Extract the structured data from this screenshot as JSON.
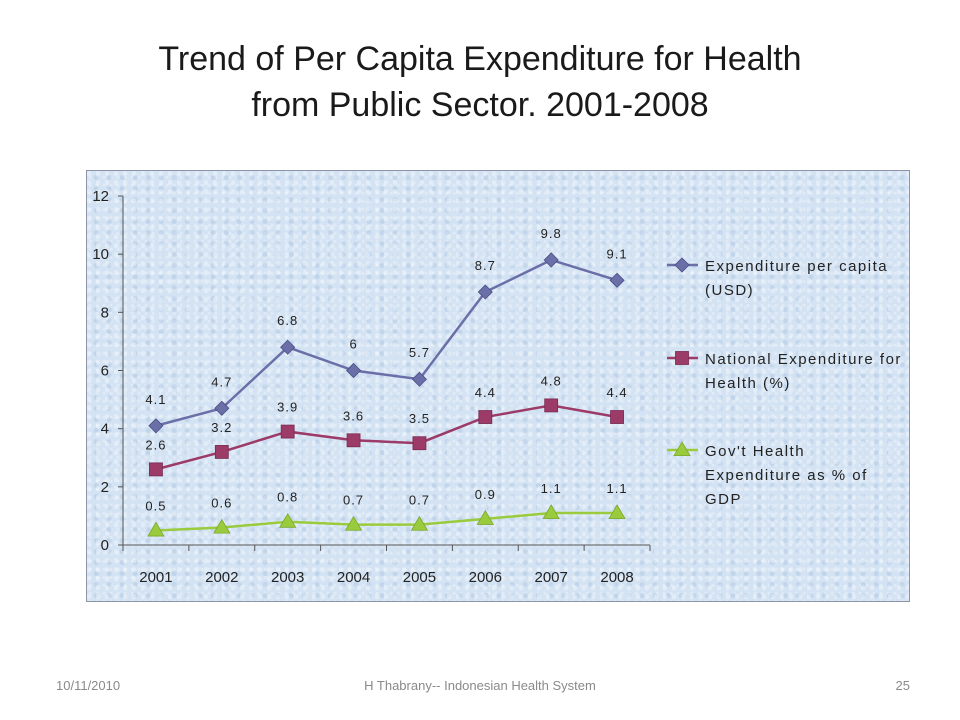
{
  "slide": {
    "title_line1": "Trend of  Per Capita Expenditure for Health",
    "title_line2": "from Public Sector. 2001-2008"
  },
  "footer": {
    "date": "10/11/2010",
    "center": "H Thabrany-- Indonesian Health System",
    "page": "25"
  },
  "chart_data": {
    "type": "line",
    "title": "Trend of  Per Capita Expenditure for Health from Public Sector. 2001-2008",
    "xlabel": "",
    "ylabel": "",
    "categories": [
      "2001",
      "2002",
      "2003",
      "2004",
      "2005",
      "2006",
      "2007",
      "2008"
    ],
    "ylim": [
      0,
      12
    ],
    "yticks": [
      "0",
      "2",
      "4",
      "6",
      "8",
      "10",
      "12"
    ],
    "grid": false,
    "legend_position": "right",
    "series": [
      {
        "name_lines": [
          "Expenditure per capita",
          "(USD)"
        ],
        "marker": "diamond",
        "color": "#6a6fa8",
        "values": [
          4.1,
          4.7,
          6.8,
          6.0,
          5.7,
          8.7,
          9.8,
          9.1
        ],
        "labels": [
          "4.1",
          "4.7",
          "6.8",
          "6",
          "5.7",
          "8.7",
          "9.8",
          "9.1"
        ]
      },
      {
        "name_lines": [
          "National Expenditure for",
          "Health  (%)"
        ],
        "marker": "square",
        "color": "#9c3a68",
        "values": [
          2.6,
          3.2,
          3.9,
          3.6,
          3.5,
          4.4,
          4.8,
          4.4
        ],
        "labels": [
          "2.6",
          "3.2",
          "3.9",
          "3.6",
          "3.5",
          "4.4",
          "4.8",
          "4.4"
        ]
      },
      {
        "name_lines": [
          "Gov't Health",
          "Expenditure as % of",
          "GDP"
        ],
        "marker": "triangle",
        "color": "#9acb3c",
        "values": [
          0.5,
          0.6,
          0.8,
          0.7,
          0.7,
          0.9,
          1.1,
          1.1
        ],
        "labels": [
          "0.5",
          "0.6",
          "0.8",
          "0.7",
          "0.7",
          "0.9",
          "1.1",
          "1.1"
        ]
      }
    ]
  }
}
